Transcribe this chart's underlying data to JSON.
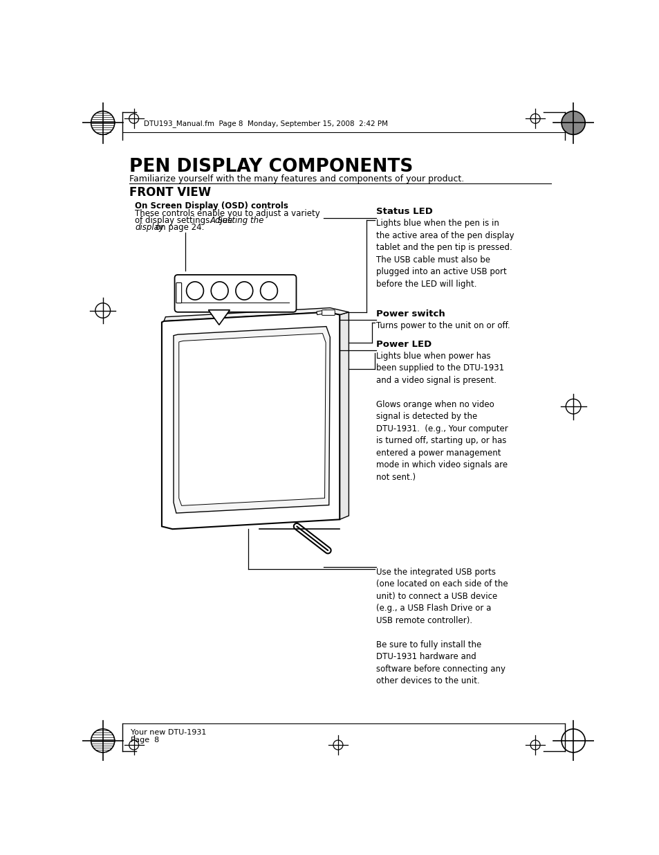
{
  "title": "PEN DISPLAY COMPONENTS",
  "subtitle": "Familiarize yourself with the many features and components of your product.",
  "section": "FRONT VIEW",
  "osd_label": "On Screen Display (OSD) controls",
  "osd_text1": "These controls enable you to adjust a variety",
  "osd_text2": "of display settings.  See ",
  "osd_text2_italic": "Adjusting the",
  "osd_text3_italic": "display",
  "osd_text3": " on page 24.",
  "status_led_label": "Status LED",
  "status_led_text": "Lights blue when the pen is in\nthe active area of the pen display\ntablet and the pen tip is pressed.\nThe USB cable must also be\nplugged into an active USB port\nbefore the LED will light.",
  "power_switch_label": "Power switch",
  "power_switch_text": "Turns power to the unit on or off.",
  "power_led_label": "Power LED",
  "power_led_text": "Lights blue when power has\nbeen supplied to the DTU-1931\nand a video signal is present.\n\nGlows orange when no video\nsignal is detected by the\nDTU-1931.  (e.g., Your computer\nis turned off, starting up, or has\nentered a power management\nmode in which video signals are\nnot sent.)",
  "usb_text": "Use the integrated USB ports\n(one located on each side of the\nunit) to connect a USB device\n(e.g., a USB Flash Drive or a\nUSB remote controller).\n\nBe sure to fully install the\nDTU-1931 hardware and\nsoftware before connecting any\nother devices to the unit.",
  "footer_line1": "Your new DTU-1931",
  "footer_line2": "Page  8",
  "header_text": "DTU193_Manual.fm  Page 8  Monday, September 15, 2008  2:42 PM",
  "bg_color": "#ffffff",
  "text_color": "#000000",
  "line_color": "#000000"
}
